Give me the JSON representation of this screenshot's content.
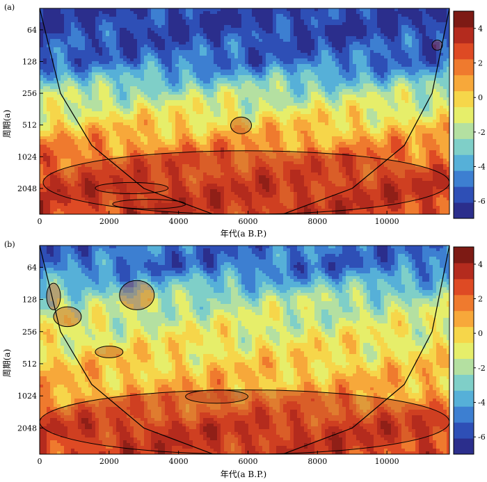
{
  "figure": {
    "panels": [
      "(a)",
      "(b)"
    ]
  },
  "colorbar": {
    "min": -7,
    "max": 5,
    "ticks": [
      4,
      2,
      0,
      -2,
      -4,
      -6
    ],
    "colors": [
      "#2b2e8c",
      "#2e4fb6",
      "#3d7fd1",
      "#56b0d8",
      "#7fcfc8",
      "#b4e0a1",
      "#e6ee6a",
      "#f6d64a",
      "#f7a83a",
      "#ef7a2e",
      "#de4a24",
      "#b42b1e",
      "#7d1a14"
    ]
  },
  "chart_data": [
    {
      "type": "heatmap",
      "panel_label": "(a)",
      "xlabel": "年代(a B.P.)",
      "ylabel": "周期(a)",
      "xlim": [
        0,
        11800
      ],
      "ylim": [
        40,
        3600
      ],
      "y_scale": "log2",
      "xticks": [
        0,
        2000,
        4000,
        6000,
        8000,
        10000
      ],
      "yticks": [
        64,
        128,
        256,
        512,
        1024,
        2048
      ],
      "cone_of_influence": [
        [
          0,
          40
        ],
        [
          600,
          256
        ],
        [
          1500,
          800
        ],
        [
          3000,
          2048
        ],
        [
          5000,
          3600
        ],
        [
          7000,
          3600
        ],
        [
          9000,
          2048
        ],
        [
          10500,
          800
        ],
        [
          11300,
          256
        ],
        [
          11800,
          40
        ]
      ],
      "power_bands": [
        {
          "period": 64,
          "value": -6
        },
        {
          "period": 128,
          "value": -5
        },
        {
          "period": 256,
          "value": -2
        },
        {
          "period": 512,
          "value": 0
        },
        {
          "period": 1024,
          "value": 2
        },
        {
          "period": 2048,
          "value": 3
        }
      ],
      "significant_regions": [
        {
          "x": [
            100,
            11800
          ],
          "period": [
            900,
            3600
          ]
        },
        {
          "x": [
            1600,
            3700
          ],
          "period": [
            1800,
            2300
          ]
        },
        {
          "x": [
            2100,
            4200
          ],
          "period": [
            2600,
            3200
          ]
        },
        {
          "x": [
            5500,
            6100
          ],
          "period": [
            430,
            620
          ]
        },
        {
          "x": [
            11300,
            11600
          ],
          "period": [
            80,
            100
          ]
        }
      ]
    },
    {
      "type": "heatmap",
      "panel_label": "(b)",
      "xlabel": "年代(a B.P.)",
      "ylabel": "周期(a)",
      "xlim": [
        0,
        11800
      ],
      "ylim": [
        40,
        3600
      ],
      "y_scale": "log2",
      "xticks": [
        0,
        2000,
        4000,
        6000,
        8000,
        10000
      ],
      "yticks": [
        64,
        128,
        256,
        512,
        1024,
        2048
      ],
      "cone_of_influence": [
        [
          0,
          40
        ],
        [
          600,
          256
        ],
        [
          1500,
          800
        ],
        [
          3000,
          2048
        ],
        [
          5000,
          3600
        ],
        [
          7000,
          3600
        ],
        [
          9000,
          2048
        ],
        [
          10500,
          800
        ],
        [
          11300,
          256
        ],
        [
          11800,
          40
        ]
      ],
      "power_bands": [
        {
          "period": 64,
          "value": -5
        },
        {
          "period": 128,
          "value": -2
        },
        {
          "period": 256,
          "value": -1
        },
        {
          "period": 512,
          "value": 0
        },
        {
          "period": 1024,
          "value": 1
        },
        {
          "period": 2048,
          "value": 3
        }
      ],
      "significant_regions": [
        {
          "x": [
            0,
            11800
          ],
          "period": [
            900,
            3600
          ]
        },
        {
          "x": [
            200,
            600
          ],
          "period": [
            90,
            160
          ]
        },
        {
          "x": [
            400,
            1200
          ],
          "period": [
            150,
            230
          ]
        },
        {
          "x": [
            1600,
            2400
          ],
          "period": [
            350,
            450
          ]
        },
        {
          "x": [
            4200,
            6000
          ],
          "period": [
            900,
            1200
          ]
        },
        {
          "x": [
            2300,
            3300
          ],
          "period": [
            85,
            160
          ]
        }
      ]
    }
  ]
}
